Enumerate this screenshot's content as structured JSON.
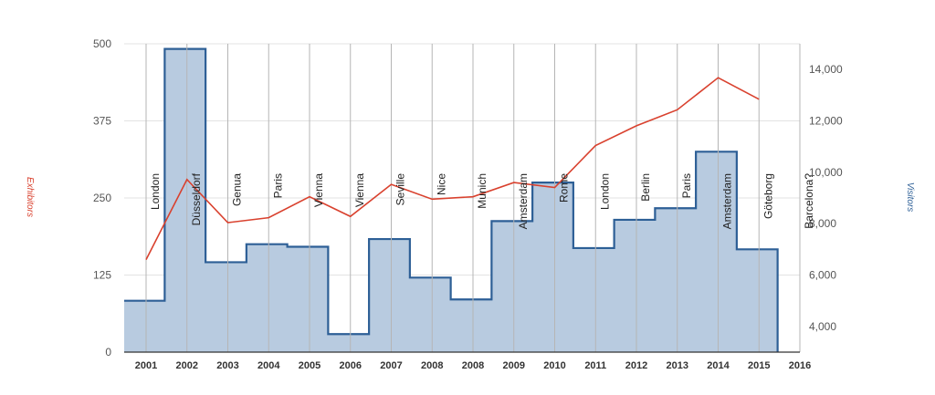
{
  "chart_data": {
    "type": "bar+line",
    "title": "",
    "categories": [
      "2001",
      "2002",
      "2003",
      "2004",
      "2005",
      "2006",
      "2007",
      "2008",
      "2008",
      "2009",
      "2010",
      "2011",
      "2012",
      "2013",
      "2014",
      "2015",
      "2016"
    ],
    "cities": [
      "London",
      "Düsseldorf",
      "Genua",
      "Paris",
      "Vienna",
      "Vienna",
      "Seville",
      "Nice",
      "Munich",
      "Amsterdam",
      "Rome",
      "London",
      "Berlin",
      "Paris",
      "Amsterdam",
      "Göteborg",
      "Barcelona?"
    ],
    "left_axis": {
      "label": "Exhibitors",
      "range": [
        0,
        500
      ],
      "ticks": [
        "0",
        "125",
        "250",
        "375",
        "500"
      ],
      "color": "#d9412e"
    },
    "right_axis": {
      "label": "Visitors",
      "range": [
        3000,
        15000
      ],
      "ticks": [
        "4,000",
        "6,000",
        "8,000",
        "10,000",
        "12,000",
        "14,000"
      ],
      "tick_values": [
        4000,
        6000,
        8000,
        10000,
        12000,
        14000
      ],
      "color": "#2d5f96"
    },
    "series": [
      {
        "name": "Visitors",
        "axis": "right",
        "render": "stepped-area",
        "color": "#2d5f96",
        "fill": "#b8cbe0",
        "values": [
          5000,
          14800,
          6500,
          7200,
          7100,
          3700,
          7400,
          5900,
          5050,
          8100,
          9600,
          7050,
          8150,
          8600,
          10800,
          7000,
          null
        ]
      },
      {
        "name": "Exhibitors",
        "axis": "left",
        "render": "line",
        "color": "#d9412e",
        "values": [
          150,
          280,
          210,
          218,
          252,
          220,
          272,
          248,
          252,
          275,
          267,
          335,
          367,
          393,
          445,
          410,
          null
        ]
      }
    ],
    "grid": true
  }
}
